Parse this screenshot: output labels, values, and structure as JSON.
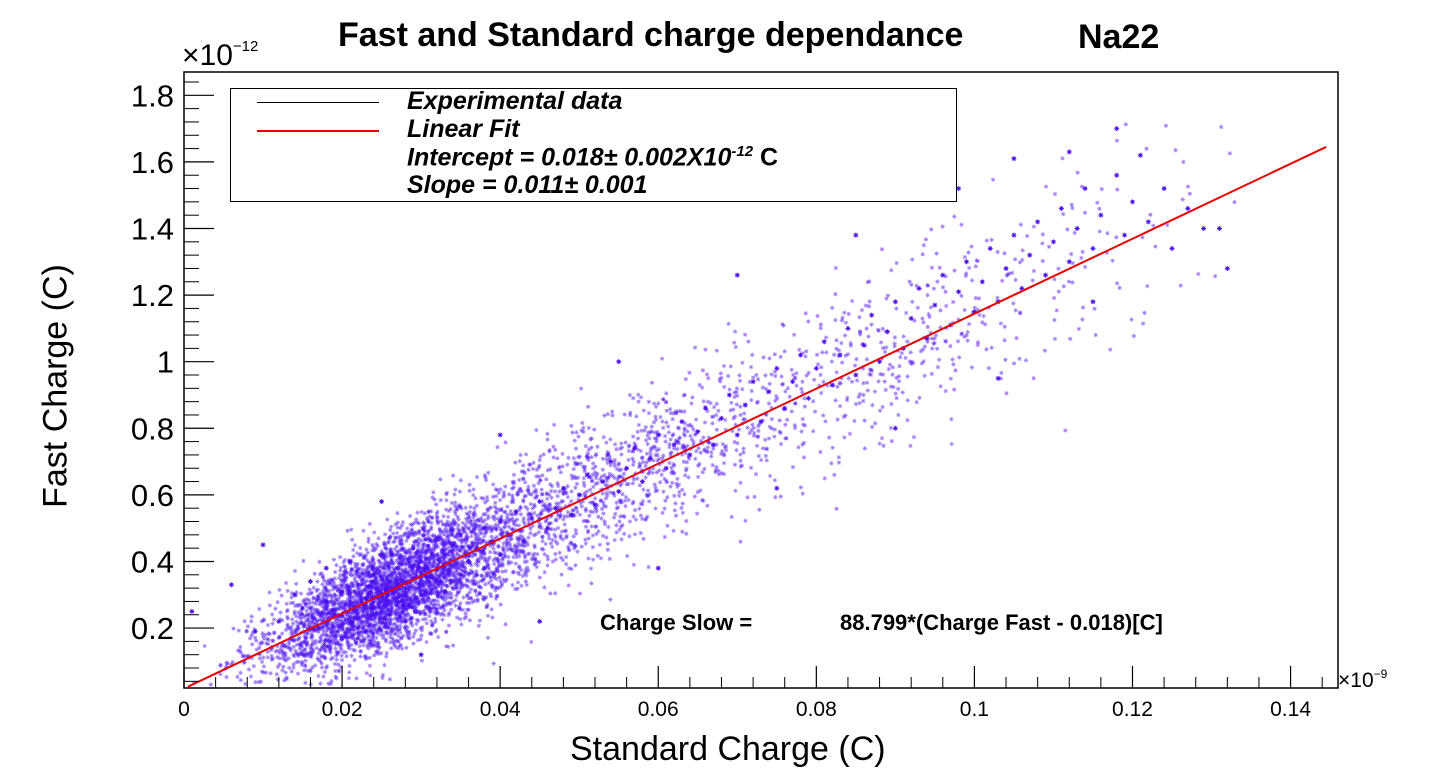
{
  "title": "Fast and Standard charge dependance",
  "subtitle": "Na22",
  "y_multiplier": {
    "base": "×10",
    "exp": "−12"
  },
  "x_multiplier": {
    "base": "×10",
    "exp": "−9"
  },
  "legend": {
    "experimental": "Experimental data",
    "fit": "Linear Fit",
    "intercept_prefix": "Intercept = 0.018± 0.002X",
    "intercept_italic": "10",
    "intercept_exp": "-12",
    "intercept_unit": " C",
    "slope": "Slope = 0.011± 0.001"
  },
  "annotation": {
    "left": "Charge Slow =",
    "right": "88.799*(Charge Fast - 0.018)[C]"
  },
  "colors": {
    "points": "#4a10f0",
    "fit": "#e80000",
    "axis": "#000000"
  },
  "chart_data": {
    "type": "scatter",
    "title": "Fast and Standard charge dependance",
    "xlabel": "Standard Charge (C)",
    "ylabel": "Fast Charge (C)",
    "xlim": [
      0,
      0.146
    ],
    "ylim": [
      0.02,
      1.87
    ],
    "x_scale_note": "×10^-9",
    "y_scale_note": "×10^-12",
    "x_ticks": [
      "0",
      "0.02",
      "0.04",
      "0.06",
      "0.08",
      "0.1",
      "0.12",
      "0.14"
    ],
    "y_ticks": [
      "0.2",
      "0.4",
      "0.6",
      "0.8",
      "1",
      "1.2",
      "1.4",
      "1.6",
      "1.8"
    ],
    "x_tick_values": [
      0,
      0.02,
      0.04,
      0.06,
      0.08,
      0.1,
      0.12,
      0.14
    ],
    "y_tick_values": [
      0.2,
      0.4,
      0.6,
      0.8,
      1.0,
      1.2,
      1.4,
      1.6,
      1.8
    ],
    "series": [
      {
        "name": "Experimental data",
        "kind": "scatter",
        "marker": "star",
        "points": [
          [
            0.012,
            0.22
          ],
          [
            0.014,
            0.3
          ],
          [
            0.015,
            0.26
          ],
          [
            0.016,
            0.34
          ],
          [
            0.017,
            0.2
          ],
          [
            0.018,
            0.28
          ],
          [
            0.018,
            0.38
          ],
          [
            0.019,
            0.24
          ],
          [
            0.02,
            0.31
          ],
          [
            0.02,
            0.17
          ],
          [
            0.021,
            0.27
          ],
          [
            0.021,
            0.4
          ],
          [
            0.022,
            0.23
          ],
          [
            0.022,
            0.33
          ],
          [
            0.023,
            0.29
          ],
          [
            0.023,
            0.19
          ],
          [
            0.024,
            0.36
          ],
          [
            0.024,
            0.26
          ],
          [
            0.025,
            0.3
          ],
          [
            0.025,
            0.42
          ],
          [
            0.026,
            0.24
          ],
          [
            0.026,
            0.34
          ],
          [
            0.027,
            0.28
          ],
          [
            0.027,
            0.38
          ],
          [
            0.028,
            0.32
          ],
          [
            0.028,
            0.22
          ],
          [
            0.029,
            0.35
          ],
          [
            0.029,
            0.44
          ],
          [
            0.03,
            0.3
          ],
          [
            0.03,
            0.4
          ],
          [
            0.031,
            0.34
          ],
          [
            0.031,
            0.26
          ],
          [
            0.032,
            0.38
          ],
          [
            0.033,
            0.42
          ],
          [
            0.033,
            0.31
          ],
          [
            0.034,
            0.45
          ],
          [
            0.035,
            0.36
          ],
          [
            0.035,
            0.48
          ],
          [
            0.036,
            0.4
          ],
          [
            0.037,
            0.44
          ],
          [
            0.038,
            0.5
          ],
          [
            0.038,
            0.38
          ],
          [
            0.039,
            0.46
          ],
          [
            0.04,
            0.52
          ],
          [
            0.04,
            0.42
          ],
          [
            0.041,
            0.48
          ],
          [
            0.042,
            0.55
          ],
          [
            0.043,
            0.46
          ],
          [
            0.044,
            0.53
          ],
          [
            0.045,
            0.58
          ],
          [
            0.046,
            0.5
          ],
          [
            0.047,
            0.56
          ],
          [
            0.048,
            0.62
          ],
          [
            0.049,
            0.54
          ],
          [
            0.05,
            0.6
          ],
          [
            0.051,
            0.66
          ],
          [
            0.052,
            0.57
          ],
          [
            0.053,
            0.64
          ],
          [
            0.054,
            0.7
          ],
          [
            0.055,
            0.61
          ],
          [
            0.056,
            0.68
          ],
          [
            0.057,
            0.74
          ],
          [
            0.058,
            0.64
          ],
          [
            0.059,
            0.71
          ],
          [
            0.06,
            0.78
          ],
          [
            0.061,
            0.68
          ],
          [
            0.062,
            0.75
          ],
          [
            0.063,
            0.82
          ],
          [
            0.064,
            0.72
          ],
          [
            0.065,
            0.79
          ],
          [
            0.066,
            0.86
          ],
          [
            0.067,
            0.75
          ],
          [
            0.068,
            0.83
          ],
          [
            0.069,
            0.9
          ],
          [
            0.07,
            0.78
          ],
          [
            0.071,
            0.87
          ],
          [
            0.072,
            0.94
          ],
          [
            0.073,
            0.82
          ],
          [
            0.074,
            0.91
          ],
          [
            0.075,
            0.98
          ],
          [
            0.076,
            0.86
          ],
          [
            0.077,
            0.94
          ],
          [
            0.078,
            1.02
          ],
          [
            0.079,
            0.89
          ],
          [
            0.08,
            0.98
          ],
          [
            0.081,
            1.06
          ],
          [
            0.082,
            0.93
          ],
          [
            0.083,
            1.02
          ],
          [
            0.084,
            1.1
          ],
          [
            0.085,
            0.96
          ],
          [
            0.086,
            1.05
          ],
          [
            0.087,
            1.14
          ],
          [
            0.088,
            1.0
          ],
          [
            0.089,
            1.09
          ],
          [
            0.09,
            1.18
          ],
          [
            0.091,
            1.04
          ],
          [
            0.092,
            1.13
          ],
          [
            0.093,
            1.22
          ],
          [
            0.094,
            1.07
          ],
          [
            0.095,
            1.17
          ],
          [
            0.096,
            1.26
          ],
          [
            0.097,
            1.11
          ],
          [
            0.098,
            1.21
          ],
          [
            0.099,
            1.3
          ],
          [
            0.1,
            1.15
          ],
          [
            0.101,
            1.24
          ],
          [
            0.102,
            1.34
          ],
          [
            0.103,
            1.18
          ],
          [
            0.104,
            1.28
          ],
          [
            0.105,
            1.38
          ],
          [
            0.106,
            1.22
          ],
          [
            0.107,
            1.32
          ],
          [
            0.108,
            1.42
          ],
          [
            0.109,
            1.26
          ],
          [
            0.11,
            1.36
          ],
          [
            0.111,
            1.46
          ],
          [
            0.112,
            1.3
          ],
          [
            0.113,
            1.4
          ],
          [
            0.114,
            1.52
          ],
          [
            0.115,
            1.34
          ],
          [
            0.116,
            1.44
          ],
          [
            0.118,
            1.56
          ],
          [
            0.119,
            1.38
          ],
          [
            0.12,
            1.48
          ],
          [
            0.121,
            1.62
          ],
          [
            0.122,
            1.42
          ],
          [
            0.124,
            1.52
          ],
          [
            0.125,
            1.34
          ],
          [
            0.127,
            1.46
          ],
          [
            0.129,
            1.4
          ],
          [
            0.131,
            1.4
          ],
          [
            0.132,
            1.28
          ],
          [
            0.118,
            1.7
          ],
          [
            0.112,
            1.63
          ],
          [
            0.105,
            1.61
          ],
          [
            0.098,
            1.52
          ],
          [
            0.001,
            0.25
          ],
          [
            0.006,
            0.33
          ],
          [
            0.009,
            0.19
          ],
          [
            0.03,
            0.12
          ],
          [
            0.045,
            0.22
          ],
          [
            0.06,
            0.38
          ],
          [
            0.075,
            0.62
          ],
          [
            0.09,
            0.8
          ],
          [
            0.085,
            1.38
          ],
          [
            0.07,
            1.26
          ],
          [
            0.055,
            1.0
          ],
          [
            0.04,
            0.78
          ],
          [
            0.025,
            0.58
          ],
          [
            0.01,
            0.45
          ],
          [
            0.103,
            0.95
          ],
          [
            0.115,
            1.18
          ]
        ]
      },
      {
        "name": "Linear Fit",
        "kind": "line",
        "intercept": 0.018,
        "slope_per_x": 11.26,
        "points": [
          [
            0.0005,
            0.024
          ],
          [
            0.1445,
            1.645
          ]
        ]
      }
    ],
    "fit": {
      "intercept": "0.018± 0.002",
      "slope": "0.011± 0.001"
    },
    "grid": false,
    "legend_position": "top-left"
  }
}
